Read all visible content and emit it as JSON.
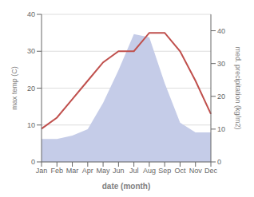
{
  "chart_data": {
    "type": "line",
    "xlabel": "date (month)",
    "ylabel": "max temp (C)",
    "y2label": "med. precipitation (kg/m2)",
    "categories": [
      "Jan",
      "Feb",
      "Mar",
      "Apr",
      "May",
      "Jun",
      "Jul",
      "Aug",
      "Sep",
      "Oct",
      "Nov",
      "Dec"
    ],
    "series": [
      {
        "type": "area",
        "color": "#c5cce8",
        "axis": "y2",
        "values": [
          7,
          7,
          8,
          10,
          18,
          28,
          39,
          38,
          24,
          12,
          9,
          9
        ]
      },
      {
        "type": "line",
        "color": "#c0504d",
        "values": [
          9,
          12,
          17,
          22,
          27,
          30,
          30,
          35,
          35,
          30,
          22,
          13
        ]
      }
    ],
    "ylim": [
      0,
      40
    ],
    "yticks": [
      0,
      10,
      20,
      30,
      40
    ],
    "y2lim": [
      0,
      45
    ],
    "y2ticks": [
      0,
      10,
      20,
      30,
      40
    ],
    "grid": true
  }
}
